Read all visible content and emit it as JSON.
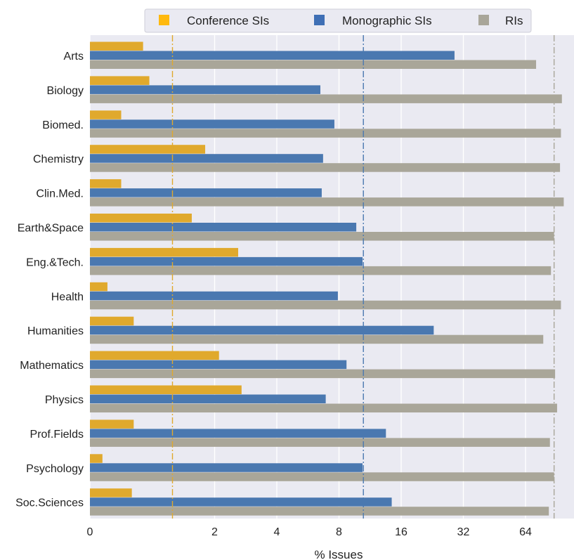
{
  "chart_data": {
    "type": "bar",
    "orientation": "horizontal",
    "x_scale": "symlog-base2",
    "xlabel": "% Issues",
    "xticks": [
      "0",
      "2",
      "4",
      "8",
      "16",
      "32",
      "64"
    ],
    "xtick_values": [
      0,
      2,
      4,
      8,
      16,
      32,
      64
    ],
    "xlim": [
      0,
      100
    ],
    "grid": true,
    "background": "#eaeaf2",
    "legend_position": "top",
    "categories": [
      "Arts",
      "Biology",
      "Biomed.",
      "Chemistry",
      "Clin.Med.",
      "Earth&Space",
      "Eng.&Tech.",
      "Health",
      "Humanities",
      "Mathematics",
      "Physics",
      "Prof.Fields",
      "Psychology",
      "Soc.Sciences"
    ],
    "series": [
      {
        "name": "Conference SIs",
        "color": "#e0a92d",
        "legend_color": "#ffb90f",
        "mean_line": 1.25,
        "values": [
          0.85,
          0.95,
          0.5,
          1.8,
          0.5,
          1.55,
          2.6,
          0.28,
          0.7,
          2.1,
          2.7,
          0.7,
          0.2,
          0.67
        ]
      },
      {
        "name": "Monographic SIs",
        "color": "#4a78b0",
        "legend_color": "#3f6fb5",
        "mean_line": 10.5,
        "values": [
          29,
          6.5,
          7.6,
          6.7,
          6.6,
          9.7,
          10.4,
          7.9,
          23,
          8.7,
          6.9,
          13.5,
          10.4,
          14.4
        ]
      },
      {
        "name": "RIs",
        "color": "#a9a699",
        "legend_color": "#a9a699",
        "mean_line": 88,
        "values": [
          72,
          96,
          95,
          94,
          98,
          88,
          85,
          95,
          78,
          89,
          91,
          84,
          88,
          83
        ]
      }
    ]
  }
}
